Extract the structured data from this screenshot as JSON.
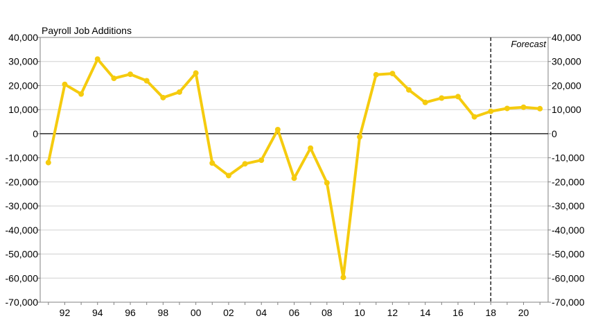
{
  "chart_data": {
    "type": "line",
    "title": "Payroll Job Additions",
    "annotation": "Forecast",
    "forecast_start_year": 2018,
    "line_color": "#F5CB0E",
    "ylim": [
      -70000,
      40000
    ],
    "yticks": [
      40000,
      30000,
      20000,
      10000,
      0,
      -10000,
      -20000,
      -30000,
      -40000,
      -50000,
      -60000,
      -70000
    ],
    "ytick_labels": [
      "40,000",
      "30,000",
      "20,000",
      "10,000",
      "0",
      "-10,000",
      "-20,000",
      "-30,000",
      "-40,000",
      "-50,000",
      "-60,000",
      "-70,000"
    ],
    "xlim": [
      1990.5,
      2021.5
    ],
    "xticks": [
      1992,
      1994,
      1996,
      1998,
      2000,
      2002,
      2004,
      2006,
      2008,
      2010,
      2012,
      2014,
      2016,
      2018,
      2020
    ],
    "xtick_labels": [
      "92",
      "94",
      "96",
      "98",
      "00",
      "02",
      "04",
      "06",
      "08",
      "10",
      "12",
      "14",
      "16",
      "18",
      "20"
    ],
    "grid": true,
    "series": [
      {
        "x": [
          1991,
          1992,
          1993,
          1994,
          1995,
          1996,
          1997,
          1998,
          1999,
          2000,
          2001,
          2002,
          2003,
          2004,
          2005,
          2006,
          2007,
          2008,
          2009,
          2010,
          2011,
          2012,
          2013,
          2014,
          2015,
          2016,
          2017,
          2018,
          2019,
          2020,
          2021
        ],
        "values": [
          -12000,
          20500,
          16500,
          31000,
          23000,
          24700,
          22000,
          15000,
          17300,
          25200,
          -12200,
          -17400,
          -12500,
          -11000,
          1700,
          -18500,
          -6000,
          -20400,
          -59700,
          -1300,
          24500,
          25000,
          18200,
          13000,
          14800,
          15400,
          7000,
          9300,
          10500,
          11000,
          10400
        ]
      }
    ]
  }
}
